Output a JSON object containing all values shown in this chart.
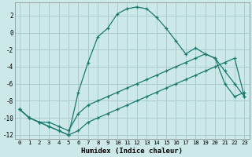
{
  "xlabel": "Humidex (Indice chaleur)",
  "bg_color": "#cce8e8",
  "grid_color": "#aacccc",
  "line_color": "#1a7a6e",
  "xlim": [
    -0.5,
    23.5
  ],
  "ylim": [
    -12.5,
    3.5
  ],
  "xticks": [
    0,
    1,
    2,
    3,
    4,
    5,
    6,
    7,
    8,
    9,
    10,
    11,
    12,
    13,
    14,
    15,
    16,
    17,
    18,
    19,
    20,
    21,
    22,
    23
  ],
  "yticks": [
    -12,
    -10,
    -8,
    -6,
    -4,
    -2,
    0,
    2
  ],
  "series": [
    {
      "x": [
        0,
        1,
        2,
        3,
        4,
        5,
        6,
        7,
        8,
        9,
        10,
        11,
        12,
        13,
        14,
        15,
        16,
        17,
        18,
        19,
        20,
        21,
        22,
        23
      ],
      "y": [
        -9.0,
        -10.0,
        -10.5,
        -11.0,
        -11.5,
        -12.0,
        -7.0,
        -3.5,
        -0.5,
        0.5,
        2.2,
        2.8,
        3.0,
        2.8,
        1.8,
        0.5,
        -1.0,
        -2.5,
        -1.8,
        -2.5,
        -3.0,
        -6.0,
        -7.5,
        -7.0
      ]
    },
    {
      "x": [
        0,
        1,
        2,
        3,
        4,
        5,
        6,
        7,
        8,
        9,
        10,
        11,
        12,
        13,
        14,
        15,
        16,
        17,
        18,
        19,
        20,
        21,
        22,
        23
      ],
      "y": [
        -9.0,
        -10.0,
        -10.5,
        -10.5,
        -11.0,
        -11.5,
        -9.5,
        -8.5,
        -8.0,
        -7.5,
        -7.0,
        -6.5,
        -6.0,
        -5.5,
        -5.0,
        -4.5,
        -4.0,
        -3.5,
        -3.0,
        -2.5,
        -3.0,
        -4.5,
        -6.0,
        -7.5
      ]
    },
    {
      "x": [
        0,
        1,
        2,
        3,
        4,
        5,
        6,
        7,
        8,
        9,
        10,
        11,
        12,
        13,
        14,
        15,
        16,
        17,
        18,
        19,
        20,
        21,
        22,
        23
      ],
      "y": [
        -9.0,
        -10.0,
        -10.5,
        -11.0,
        -11.5,
        -12.0,
        -11.5,
        -10.5,
        -10.0,
        -9.5,
        -9.0,
        -8.5,
        -8.0,
        -7.5,
        -7.0,
        -6.5,
        -6.0,
        -5.5,
        -5.0,
        -4.5,
        -4.0,
        -3.5,
        -3.0,
        -7.5
      ]
    }
  ]
}
